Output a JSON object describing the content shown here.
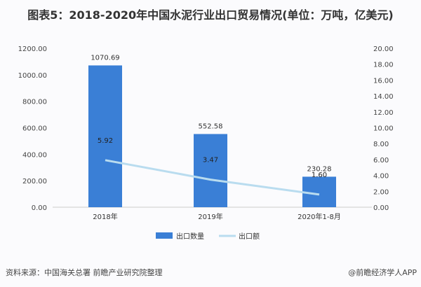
{
  "title": "图表5：2018-2020年中国水泥行业出口贸易情况(单位：万吨，亿美元)",
  "source": "资料来源：中国海关总署 前瞻产业研究院整理",
  "credit": "@前瞻经济学人APP",
  "chart_data": {
    "type": "bar+line",
    "categories": [
      "2018年",
      "2019年",
      "2020年1-8月"
    ],
    "series": [
      {
        "name": "出口数量",
        "type": "bar",
        "axis": "left",
        "values": [
          1070.69,
          552.58,
          230.28
        ],
        "color": "#3a7fd6"
      },
      {
        "name": "出口额",
        "type": "line",
        "axis": "right",
        "values": [
          5.92,
          3.47,
          1.6
        ],
        "color": "#b9dcef"
      }
    ],
    "left_axis": {
      "ylim": [
        0,
        1200
      ],
      "ticks": [
        "0.00",
        "200.00",
        "400.00",
        "600.00",
        "800.00",
        "1000.00",
        "1200.00"
      ]
    },
    "right_axis": {
      "ylim": [
        0,
        20
      ],
      "ticks": [
        "0.00",
        "2.00",
        "4.00",
        "6.00",
        "8.00",
        "10.00",
        "12.00",
        "14.00",
        "16.00",
        "18.00",
        "20.00"
      ]
    },
    "legend": "bottom",
    "grid": false
  }
}
